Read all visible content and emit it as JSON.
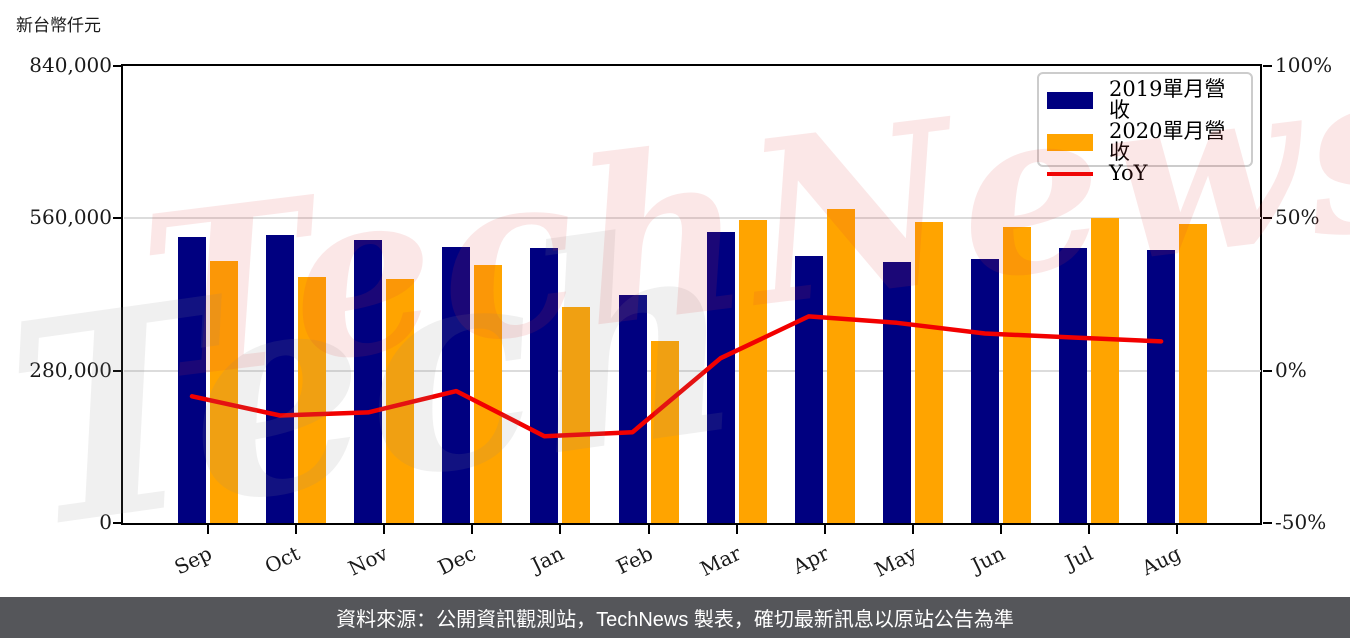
{
  "unit_label": "新台幣仟元",
  "legend": {
    "items": [
      {
        "label": "2019單月營收",
        "color": "#000080",
        "type": "bar"
      },
      {
        "label": "2020單月營收",
        "color": "#FFA400",
        "type": "bar"
      },
      {
        "label": "YoY",
        "color": "#F20000",
        "type": "line"
      }
    ]
  },
  "watermark": {
    "back_text": "Tech",
    "front_text": "TechNews"
  },
  "footer": {
    "source_text": "資料來源：公開資訊觀測站，TechNews 製表，確切最新訊息以原站公告為準"
  },
  "colors": {
    "bar_2019": "#000080",
    "bar_2020": "#FFA400",
    "yoy_line": "#F20000",
    "gridline": "#dcdcdc",
    "axis": "#000000",
    "footer_bg": "#55565a"
  },
  "chart_data": {
    "type": "bar+line combo",
    "categories": [
      "Sep",
      "Oct",
      "Nov",
      "Dec",
      "Jan",
      "Feb",
      "Mar",
      "Apr",
      "May",
      "Jun",
      "Jul",
      "Aug"
    ],
    "series": [
      {
        "name": "2019單月營收",
        "type": "bar",
        "axis": "left",
        "color": "#000080",
        "values": [
          526000,
          530000,
          520000,
          508000,
          506000,
          420000,
          535000,
          490000,
          479000,
          485000,
          505000,
          502000
        ]
      },
      {
        "name": "2020單月營收",
        "type": "bar",
        "axis": "left",
        "color": "#FFA400",
        "values": [
          482000,
          452000,
          449000,
          474000,
          397000,
          335000,
          557000,
          577000,
          554000,
          544000,
          560000,
          550000
        ]
      },
      {
        "name": "YoY",
        "type": "line",
        "axis": "right",
        "color": "#F20000",
        "values_percent": [
          -8.4,
          -14.7,
          -13.7,
          -6.7,
          -21.5,
          -20.2,
          4.1,
          17.8,
          15.7,
          12.2,
          10.9,
          9.6
        ]
      }
    ],
    "left_axis": {
      "title": "新台幣仟元",
      "min": 0,
      "max": 840000,
      "tick_values": [
        0,
        280000,
        560000,
        840000
      ],
      "tick_labels": [
        "0",
        "280,000",
        "560,000",
        "840,000"
      ]
    },
    "right_axis": {
      "min": -50,
      "max": 100,
      "tick_values": [
        -50,
        0,
        50,
        100
      ],
      "tick_labels": [
        "-50%",
        "0%",
        "50%",
        "100%"
      ]
    },
    "gridline_values": [
      280000,
      560000
    ],
    "legend_position": "top-right",
    "grid": "horizontal only"
  }
}
